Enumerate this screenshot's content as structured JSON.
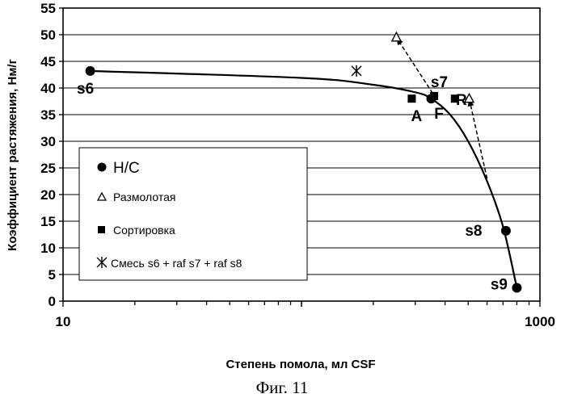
{
  "chart_data": {
    "type": "scatter",
    "title": "",
    "xlabel": "Степень помола, мл CSF",
    "ylabel": "Коэффициент растяжения, Нм/г",
    "x_scale": "log",
    "xlim": [
      10,
      1000
    ],
    "ylim": [
      0,
      55
    ],
    "x_tick_labels": [
      "10",
      "1000"
    ],
    "y_ticks": [
      0,
      5,
      10,
      15,
      20,
      25,
      30,
      35,
      40,
      45,
      50,
      55
    ],
    "grid": "horizontal",
    "legend_position": "lower-left",
    "series": [
      {
        "name": "Н/С",
        "marker": "circle",
        "points": [
          {
            "x": 13,
            "y": 43.2,
            "label": "s6"
          },
          {
            "x": 350,
            "y": 38.0,
            "label": "s7"
          },
          {
            "x": 720,
            "y": 13.2,
            "label": "s8"
          },
          {
            "x": 800,
            "y": 2.5,
            "label": "s9"
          }
        ]
      },
      {
        "name": "Размолотая",
        "marker": "triangle",
        "points": [
          {
            "x": 250,
            "y": 49.5
          },
          {
            "x": 505,
            "y": 38.0
          }
        ]
      },
      {
        "name": "Сортировка",
        "marker": "square",
        "points": [
          {
            "x": 290,
            "y": 38.0,
            "label": "A"
          },
          {
            "x": 360,
            "y": 38.5,
            "label": "F"
          },
          {
            "x": 440,
            "y": 38.0,
            "label": "R"
          }
        ]
      },
      {
        "name": "Смесь s6 + raf s7 + raf s8",
        "marker": "asterisk",
        "points": [
          {
            "x": 170,
            "y": 43.2
          }
        ]
      }
    ],
    "curve": [
      [
        13,
        43.2
      ],
      [
        100,
        41.9
      ],
      [
        200,
        40.6
      ],
      [
        300,
        39.2
      ],
      [
        350,
        38.0
      ],
      [
        420,
        35.0
      ],
      [
        500,
        30.0
      ],
      [
        600,
        22.5
      ],
      [
        700,
        14.0
      ],
      [
        800,
        2.5
      ]
    ],
    "arrows": [
      {
        "from": [
          355,
          39.0
        ],
        "to": [
          250,
          49.5
        ]
      },
      {
        "from": [
          600,
          23.0
        ],
        "to": [
          505,
          38.0
        ]
      }
    ]
  },
  "caption": "Фиг. 11"
}
